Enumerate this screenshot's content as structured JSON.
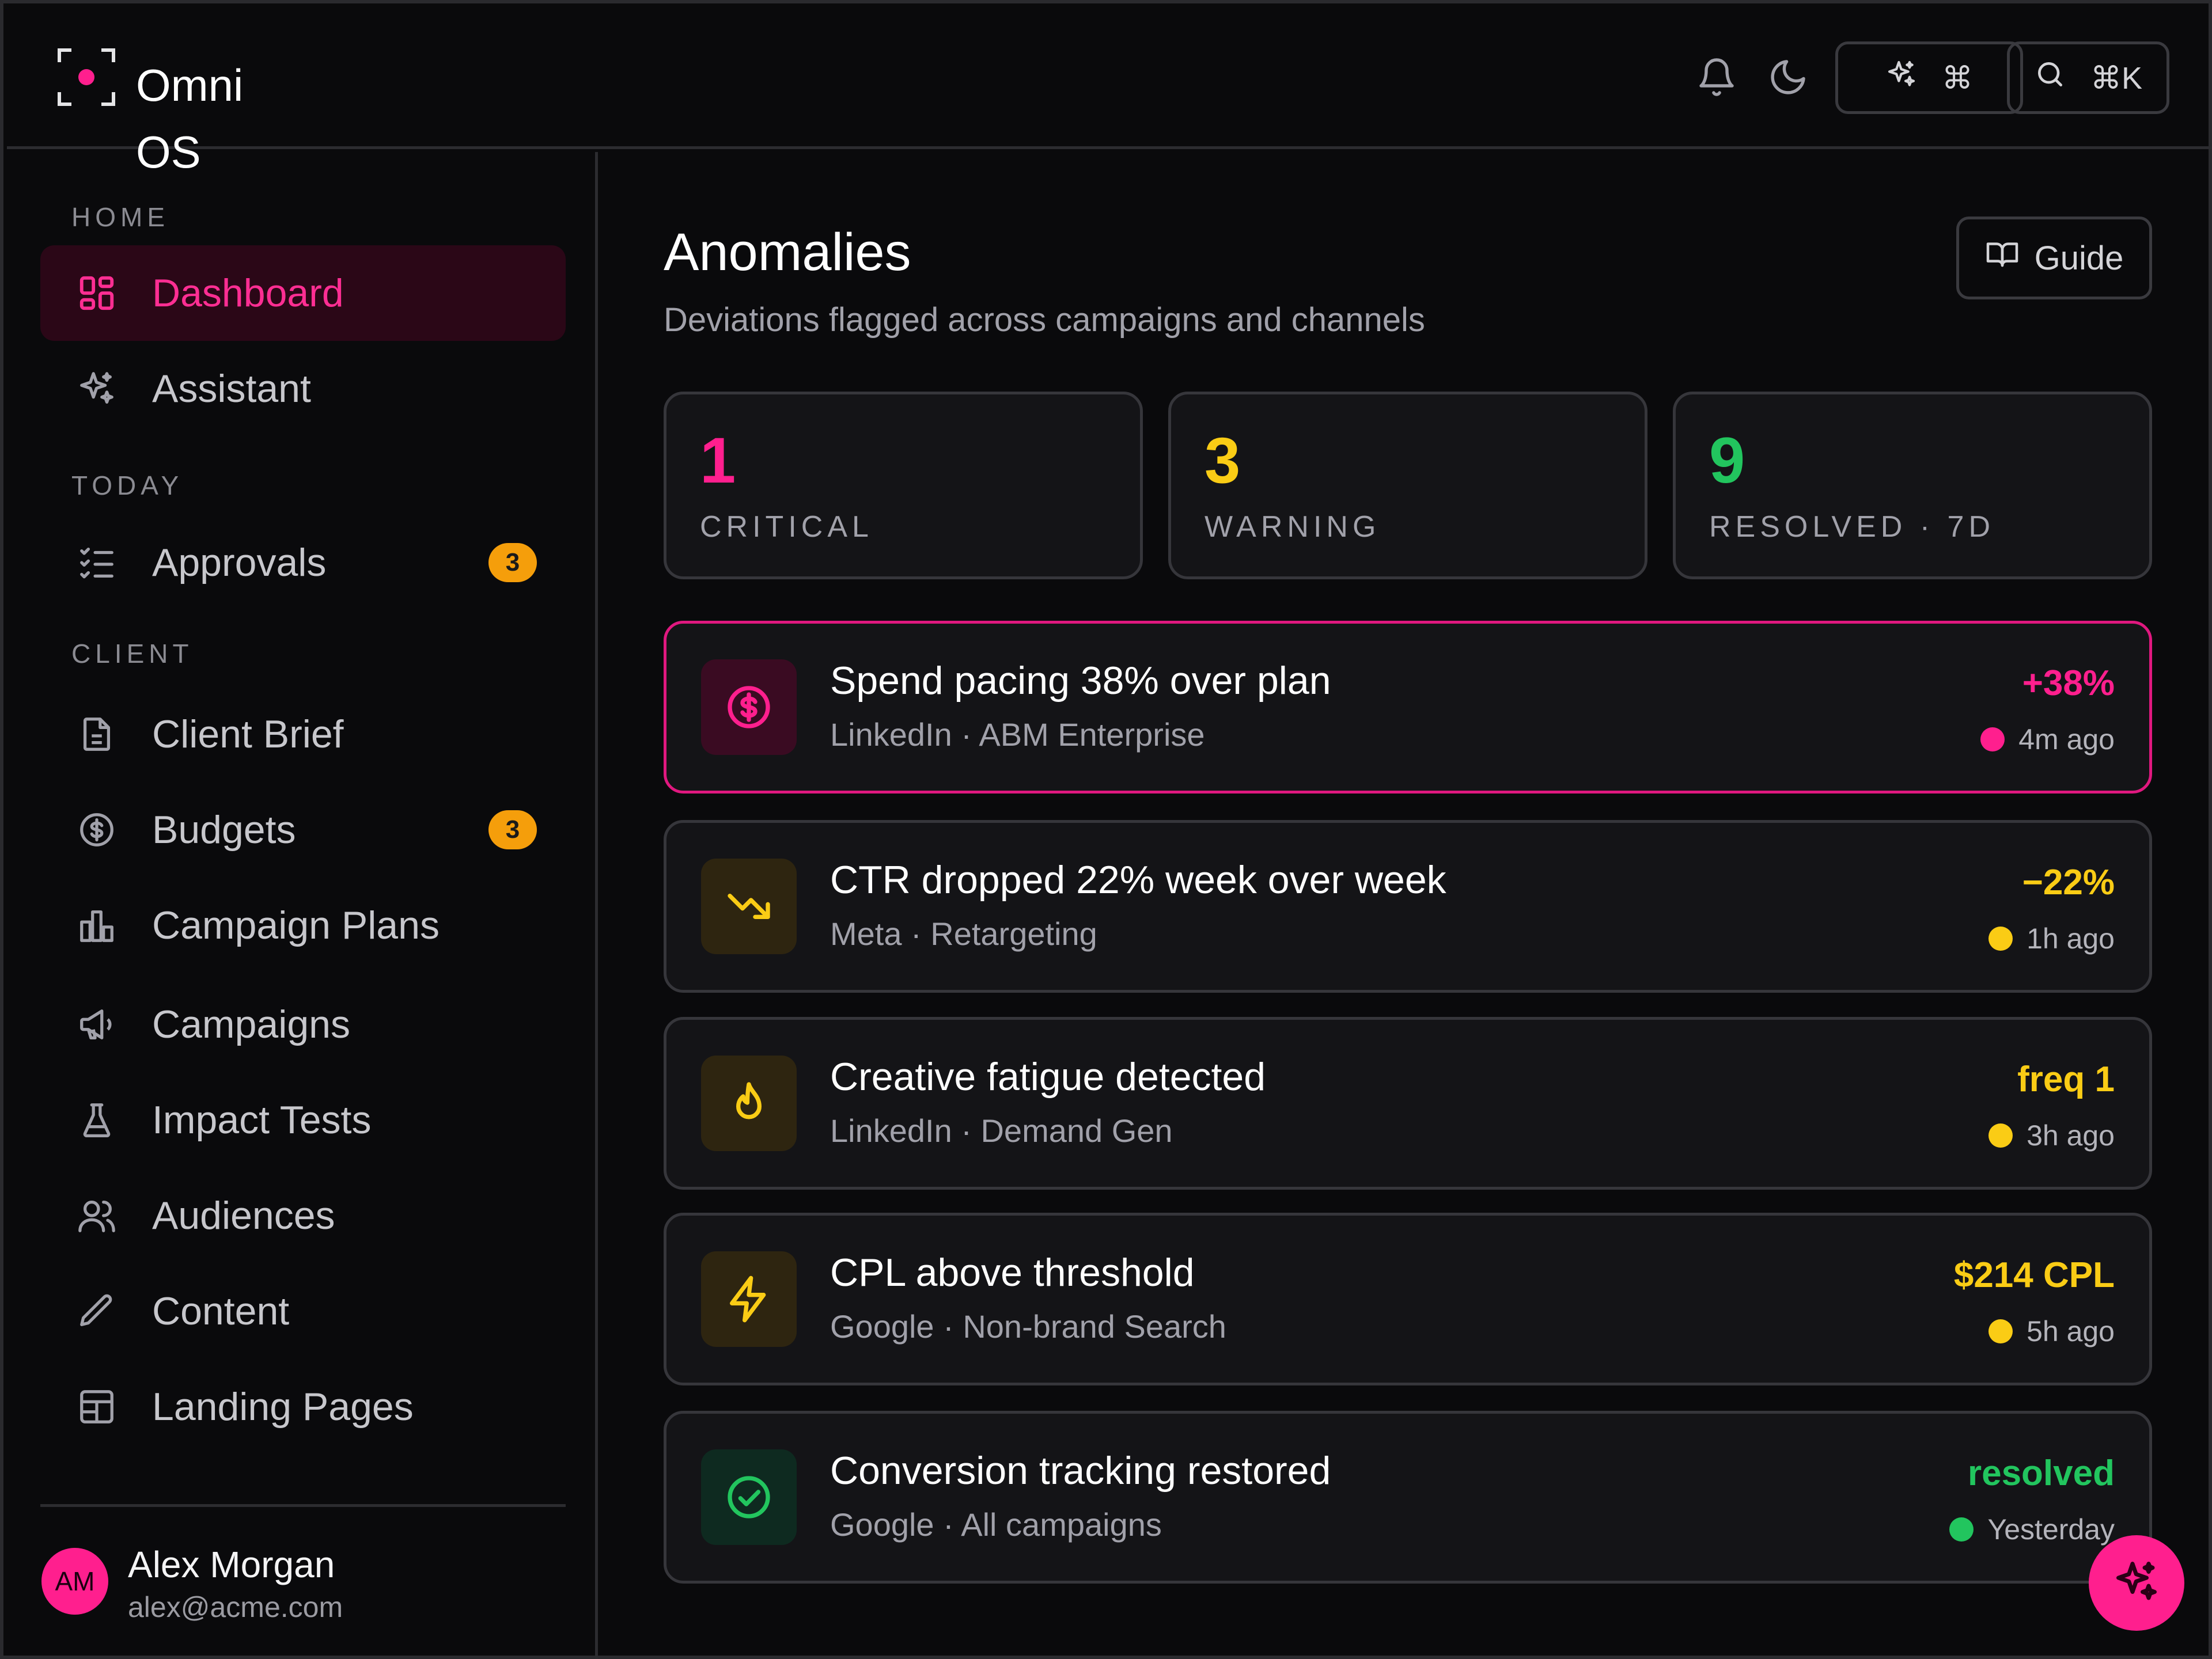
{
  "app": {
    "name": "Omni OS"
  },
  "topbar": {
    "notifications_icon": "bell-icon",
    "theme_icon": "moon-icon",
    "assistant_shortcut": "⌘",
    "search_shortcut": "⌘K"
  },
  "sidebar": {
    "sections": {
      "home": "HOME",
      "today": "TODAY",
      "client": "CLIENT"
    },
    "items": [
      {
        "label": "Dashboard",
        "icon": "dashboard-icon",
        "active": true
      },
      {
        "label": "Assistant",
        "icon": "sparkles-icon"
      },
      {
        "label": "Approvals",
        "icon": "checklist-icon",
        "badge": "3"
      },
      {
        "label": "Client Brief",
        "icon": "document-icon"
      },
      {
        "label": "Budgets",
        "icon": "dollar-circle-icon",
        "badge": "3"
      },
      {
        "label": "Campaign Plans",
        "icon": "bar-chart-icon"
      },
      {
        "label": "Campaigns",
        "icon": "megaphone-icon"
      },
      {
        "label": "Impact Tests",
        "icon": "flask-icon"
      },
      {
        "label": "Audiences",
        "icon": "users-icon"
      },
      {
        "label": "Content",
        "icon": "pencil-icon"
      },
      {
        "label": "Landing Pages",
        "icon": "layout-icon"
      }
    ],
    "user": {
      "initials": "AM",
      "name": "Alex Morgan",
      "email": "alex@acme.com"
    }
  },
  "main": {
    "title": "Anomalies",
    "subtitle": "Deviations flagged across campaigns and channels",
    "guide_label": "Guide",
    "stats": [
      {
        "value": "1",
        "label": "CRITICAL",
        "color": "#ff1f8e"
      },
      {
        "value": "3",
        "label": "WARNING",
        "color": "#facc15"
      },
      {
        "value": "9",
        "label": "RESOLVED · 7D",
        "color": "#22c55e"
      }
    ],
    "anomalies": [
      {
        "title": "Spend pacing 38% over plan",
        "source": "LinkedIn · ABM Enterprise",
        "metric": "+38%",
        "time": "4m ago",
        "severity": "critical",
        "color": "#ff1f8e",
        "icon": "dollar-circle-icon"
      },
      {
        "title": "CTR dropped 22% week over week",
        "source": "Meta · Retargeting",
        "metric": "−22%",
        "time": "1h ago",
        "severity": "warning",
        "color": "#facc15",
        "icon": "trending-down-icon"
      },
      {
        "title": "Creative fatigue detected",
        "source": "LinkedIn · Demand Gen",
        "metric": "freq 1",
        "time": "3h ago",
        "severity": "warning",
        "color": "#facc15",
        "icon": "flame-icon"
      },
      {
        "title": "CPL above threshold",
        "source": "Google · Non-brand Search",
        "metric": "$214 CPL",
        "time": "5h ago",
        "severity": "warning",
        "color": "#facc15",
        "icon": "lightning-icon"
      },
      {
        "title": "Conversion tracking restored",
        "source": "Google · All campaigns",
        "metric": "resolved",
        "time": "Yesterday",
        "severity": "resolved",
        "color": "#22c55e",
        "icon": "check-circle-icon"
      }
    ]
  }
}
